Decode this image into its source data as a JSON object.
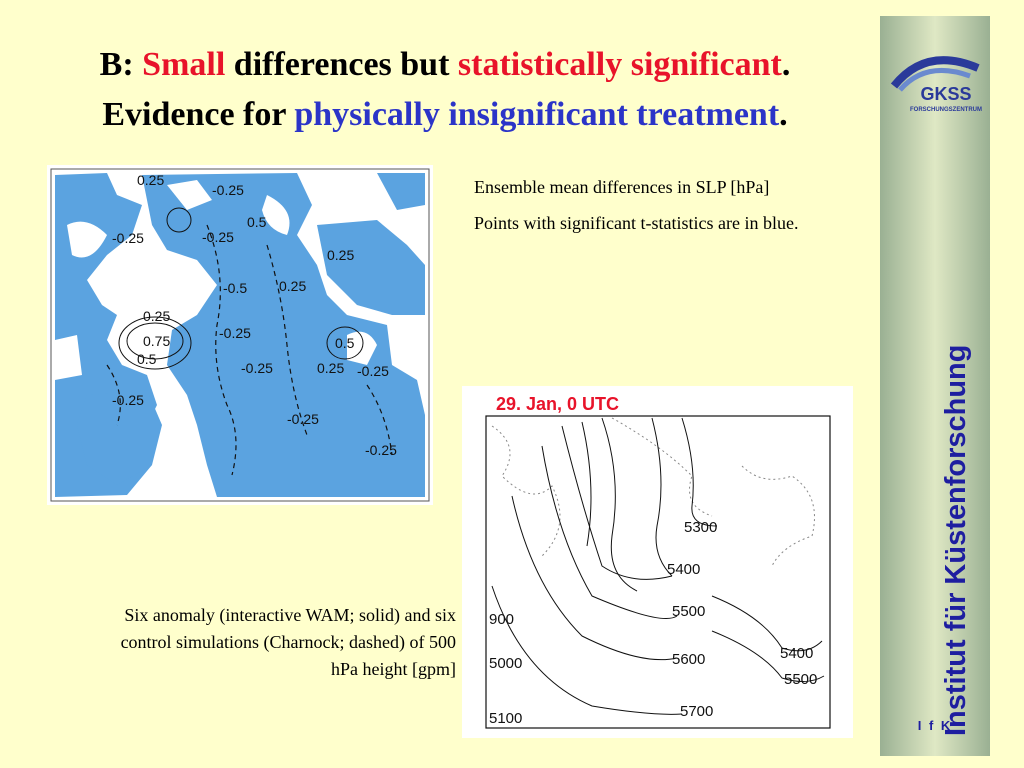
{
  "title": {
    "line1": {
      "prefix": "B: ",
      "small": "Small",
      "middle": " differences but ",
      "stat": "statistically significant",
      "end": "."
    },
    "line2": {
      "prefix": "Evidence for ",
      "phys": "physically insignificant treatment",
      "end": "."
    }
  },
  "colors": {
    "accent_red": "#E8132A",
    "accent_blue": "#2B34C8",
    "background": "#FFFFCC",
    "map_blue": "#5BA3E0",
    "sidebar_text": "#1E1EA0"
  },
  "sidebar": {
    "logo_text": "GKSS",
    "logo_sub": "FORSCHUNGSZENTRUM",
    "vertical_text": "Institut für Küstenforschung",
    "footer": "I f K"
  },
  "map1": {
    "labels": [
      "0.25",
      "-0.25",
      "-0.25",
      "-0.25",
      "0.5",
      "0.25",
      "-0.5",
      "0.25",
      "0.25",
      "-0.25",
      "0.75",
      "0.5",
      "0.5",
      "0.25",
      "-0.25",
      "-0.25",
      "-0.25",
      "-0.25",
      "-0.25"
    ]
  },
  "description": {
    "p1": "Ensemble mean differences in SLP [hPa]",
    "p2": "Points with significant t-statistics are in blue."
  },
  "map2": {
    "title": "29. Jan, 0 UTC",
    "labels": [
      "5300",
      "5400",
      "5500",
      "5600",
      "5700",
      "900",
      "5000",
      "5100",
      "5400",
      "5500"
    ]
  },
  "caption": "Six anomaly (interactive WAM; solid) and six control simulations (Charnock; dashed) of 500 hPa height [gpm]"
}
